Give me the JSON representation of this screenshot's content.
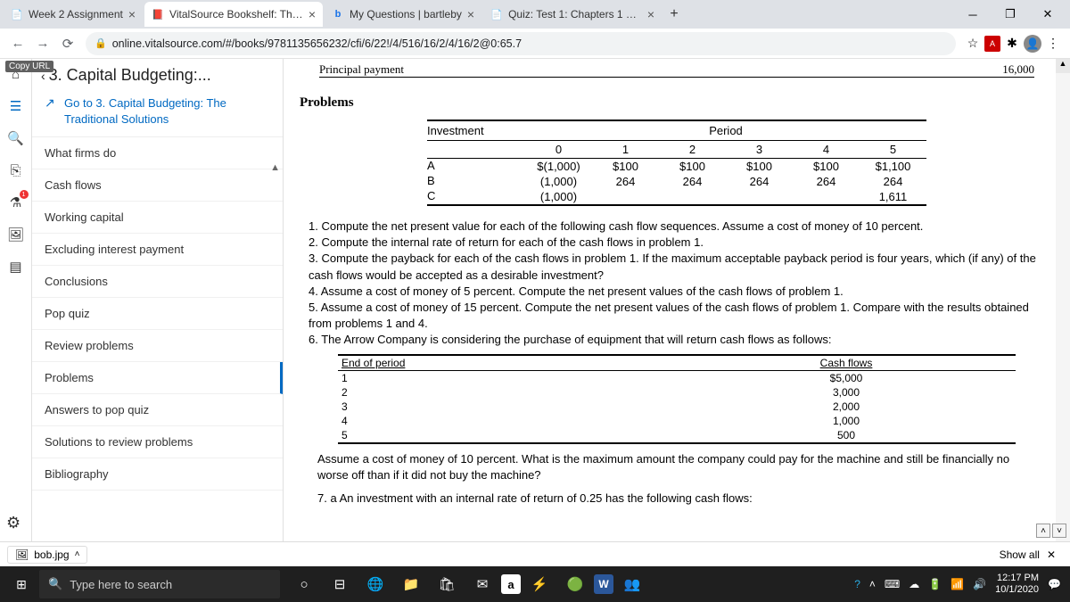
{
  "tabs": [
    {
      "title": "Week 2 Assignment",
      "favicon": "📄",
      "active": false
    },
    {
      "title": "VitalSource Bookshelf: The Capita",
      "favicon": "📕",
      "active": true
    },
    {
      "title": "My Questions | bartleby",
      "favicon": "b",
      "active": false
    },
    {
      "title": "Quiz: Test 1: Chapters 1 & 2",
      "favicon": "📄",
      "active": false
    }
  ],
  "url": "online.vitalsource.com/#/books/9781135656232/cfi/6/22!/4/516/16/2/4/16/2@0:65.7",
  "copyurl": "Copy URL",
  "toc": {
    "title": "3. Capital Budgeting:...",
    "back_chevron": "‹",
    "goto": {
      "arrow": "↗",
      "text": "Go to 3. Capital Budgeting: The Traditional Solutions"
    },
    "items": [
      "What firms do",
      "Cash flows",
      "Working capital",
      "Excluding interest payment",
      "Conclusions",
      "Pop quiz",
      "Review problems",
      "Problems",
      "Answers to pop quiz",
      "Solutions to review problems",
      "Bibliography"
    ],
    "active_index": 7
  },
  "content": {
    "principal": {
      "label": "Principal payment",
      "value": "16,000"
    },
    "problems_heading": "Problems",
    "inv": {
      "left_header": "Investment",
      "right_header": "Period",
      "periods": [
        "0",
        "1",
        "2",
        "3",
        "4",
        "5"
      ],
      "rows": [
        {
          "label": "A",
          "cells": [
            "$(1,000)",
            "$100",
            "$100",
            "$100",
            "$100",
            "$1,100"
          ]
        },
        {
          "label": "B",
          "cells": [
            "(1,000)",
            "264",
            "264",
            "264",
            "264",
            "264"
          ]
        },
        {
          "label": "C",
          "cells": [
            "(1,000)",
            "",
            "",
            "",
            "",
            "1,611"
          ]
        }
      ]
    },
    "list": [
      "1. Compute the net present value for each of the following cash flow sequences. Assume a cost of money of 10 percent.",
      "2. Compute the internal rate of return for each of the cash flows in problem 1.",
      "3. Compute the payback for each of the cash flows in problem 1. If the maximum acceptable payback period is four years, which (if any) of the cash flows would be accepted as a desirable investment?",
      "4. Assume a cost of money of 5 percent. Compute the net present values of the cash flows of problem 1.",
      "5. Assume a cost of money of 15 percent. Compute the net present values of the cash flows of problem 1. Compare with the results obtained from problems 1 and 4.",
      "6. The Arrow Company is considering the purchase of equipment that will return cash flows as follows:"
    ],
    "cf": {
      "h1": "End of period",
      "h2": "Cash flows",
      "rows": [
        [
          "1",
          "$5,000"
        ],
        [
          "2",
          "3,000"
        ],
        [
          "3",
          "2,000"
        ],
        [
          "4",
          "1,000"
        ],
        [
          "5",
          "500"
        ]
      ]
    },
    "after1": "Assume a cost of money of 10 percent. What is the maximum amount the company could pay for the machine and still be financially no worse off than if it did not buy the machine?",
    "after2": "7. a An investment with an internal rate of return of 0.25 has the following cash flows:"
  },
  "download": {
    "file": "bob.jpg",
    "showall": "Show all"
  },
  "taskbar": {
    "search": "Type here to search",
    "time": "12:17 PM",
    "date": "10/1/2020"
  }
}
